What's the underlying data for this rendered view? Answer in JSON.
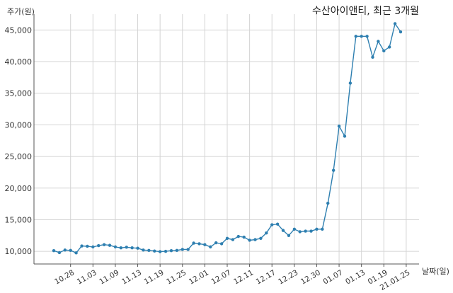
{
  "chart_data": {
    "type": "line",
    "title": "수산아이앤티, 최근 3개월",
    "ylabel": "주가(원)",
    "xlabel": "날짜(일)",
    "ylim": [
      8000,
      47500
    ],
    "yticks": [
      10000,
      15000,
      20000,
      25000,
      30000,
      35000,
      40000,
      45000
    ],
    "ytick_labels": [
      "10,000",
      "15,000",
      "20,000",
      "25,000",
      "30,000",
      "35,000",
      "40,000",
      "45,000"
    ],
    "grid": true,
    "xtick_labels": [
      "10.28",
      "11.03",
      "11.09",
      "11.13",
      "11.19",
      "11.25",
      "12.01",
      "12.07",
      "12.11",
      "12.17",
      "12.23",
      "12.30",
      "01.07",
      "01.13",
      "01.19",
      "21.01.25"
    ],
    "xtick_index": [
      3,
      7,
      11,
      15,
      19,
      23,
      27,
      31,
      35,
      39,
      43,
      47,
      51,
      55,
      59,
      63
    ],
    "series": [
      {
        "color": "#2e7fb0",
        "values": [
          10100,
          9800,
          10200,
          10150,
          9750,
          10850,
          10800,
          10700,
          10900,
          11050,
          10950,
          10700,
          10550,
          10650,
          10550,
          10500,
          10200,
          10150,
          10050,
          9950,
          10000,
          10100,
          10150,
          10300,
          10300,
          11300,
          11200,
          11050,
          10700,
          11350,
          11200,
          12050,
          11850,
          12350,
          12250,
          11750,
          11850,
          12050,
          12900,
          14200,
          14300,
          13300,
          12500,
          13500,
          13100,
          13200,
          13200,
          13500,
          13500,
          17600,
          22800,
          29800,
          28200,
          36600,
          44000,
          44000,
          44000,
          40700,
          43200,
          41700,
          42300,
          46000,
          44700
        ]
      }
    ]
  }
}
